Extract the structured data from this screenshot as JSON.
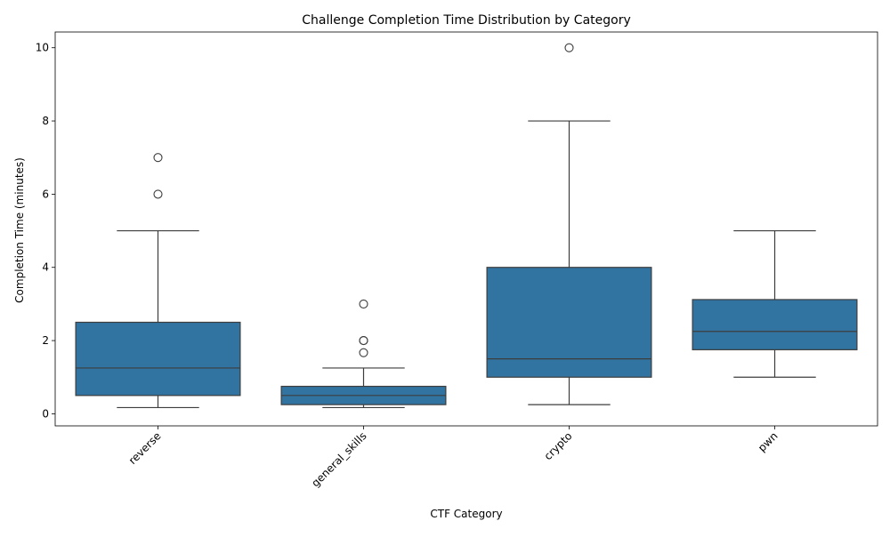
{
  "chart_data": {
    "type": "box",
    "title": "Challenge Completion Time Distribution by Category",
    "xlabel": "CTF Category",
    "ylabel": "Completion Time (minutes)",
    "ylim": [
      -0.33,
      10.43
    ],
    "yticks": [
      0,
      2,
      4,
      6,
      8,
      10
    ],
    "grid": false,
    "legend": "none",
    "box_color": "#3274a1",
    "categories": [
      "reverse",
      "general_skills",
      "crypto",
      "pwn"
    ],
    "boxes": [
      {
        "category": "reverse",
        "whisker_low": 0.17,
        "q1": 0.5,
        "median": 1.25,
        "q3": 2.5,
        "whisker_high": 5,
        "outliers": [
          6,
          7
        ]
      },
      {
        "category": "general_skills",
        "whisker_low": 0.17,
        "q1": 0.25,
        "median": 0.5,
        "q3": 0.75,
        "whisker_high": 1.25,
        "outliers": [
          1.67,
          2,
          2,
          3
        ]
      },
      {
        "category": "crypto",
        "whisker_low": 0.25,
        "q1": 1.0,
        "median": 1.5,
        "q3": 4.0,
        "whisker_high": 8,
        "outliers": [
          10
        ]
      },
      {
        "category": "pwn",
        "whisker_low": 1.0,
        "q1": 1.75,
        "median": 2.25,
        "q3": 3.12,
        "whisker_high": 5,
        "outliers": []
      }
    ]
  }
}
